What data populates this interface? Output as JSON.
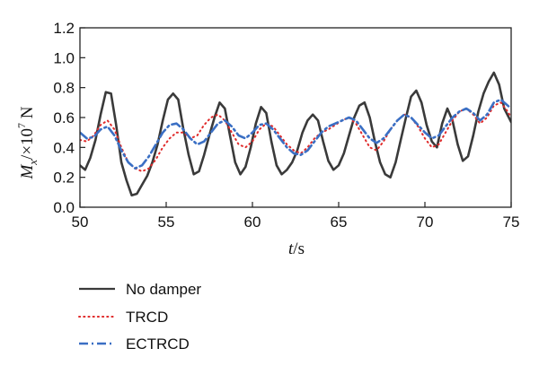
{
  "chart_data": {
    "type": "line",
    "xlabel": "t/s",
    "ylabel": "Mx/×10^7 N",
    "ylabel_parts": {
      "m": "M",
      "sub": "x",
      "mid": "/×10",
      "sup": "7",
      "unit": " N"
    },
    "xlabel_parts": {
      "t": "t",
      "unit": "/s"
    },
    "xlim": [
      50,
      75
    ],
    "ylim": [
      0.0,
      1.2
    ],
    "x_ticks": [
      50,
      55,
      60,
      65,
      70,
      75
    ],
    "y_ticks": [
      0.0,
      0.2,
      0.4,
      0.6,
      0.8,
      1.0,
      1.2
    ],
    "x_tick_labels": [
      "50",
      "55",
      "60",
      "65",
      "70",
      "75"
    ],
    "y_tick_labels": [
      "0.0",
      "0.2",
      "0.4",
      "0.6",
      "0.8",
      "1.0",
      "1.2"
    ],
    "grid": false,
    "legend_position": "below",
    "series": [
      {
        "name": "No damper",
        "color": "#3a3a3a",
        "style": "solid",
        "x": [
          50.0,
          50.3,
          50.6,
          50.9,
          51.2,
          51.5,
          51.8,
          52.1,
          52.4,
          52.7,
          53.0,
          53.3,
          53.6,
          53.9,
          54.2,
          54.5,
          54.8,
          55.1,
          55.4,
          55.7,
          56.0,
          56.3,
          56.6,
          56.9,
          57.2,
          57.5,
          57.8,
          58.1,
          58.4,
          58.7,
          59.0,
          59.3,
          59.6,
          59.9,
          60.2,
          60.5,
          60.8,
          61.1,
          61.4,
          61.7,
          62.0,
          62.3,
          62.6,
          62.9,
          63.2,
          63.5,
          63.8,
          64.1,
          64.4,
          64.7,
          65.0,
          65.3,
          65.6,
          65.9,
          66.2,
          66.5,
          66.8,
          67.1,
          67.4,
          67.7,
          68.0,
          68.3,
          68.6,
          68.9,
          69.2,
          69.5,
          69.8,
          70.1,
          70.4,
          70.7,
          71.0,
          71.3,
          71.6,
          71.9,
          72.2,
          72.5,
          72.8,
          73.1,
          73.4,
          73.7,
          74.0,
          74.3,
          74.6,
          75.0
        ],
        "values": [
          0.28,
          0.25,
          0.33,
          0.45,
          0.62,
          0.77,
          0.76,
          0.55,
          0.3,
          0.18,
          0.08,
          0.09,
          0.15,
          0.21,
          0.3,
          0.42,
          0.58,
          0.72,
          0.76,
          0.72,
          0.52,
          0.35,
          0.22,
          0.24,
          0.35,
          0.48,
          0.6,
          0.7,
          0.66,
          0.48,
          0.3,
          0.22,
          0.27,
          0.4,
          0.56,
          0.67,
          0.63,
          0.44,
          0.28,
          0.22,
          0.25,
          0.3,
          0.38,
          0.5,
          0.58,
          0.62,
          0.58,
          0.44,
          0.31,
          0.25,
          0.28,
          0.36,
          0.48,
          0.6,
          0.68,
          0.7,
          0.6,
          0.44,
          0.3,
          0.22,
          0.2,
          0.3,
          0.45,
          0.6,
          0.74,
          0.78,
          0.7,
          0.55,
          0.44,
          0.4,
          0.56,
          0.66,
          0.58,
          0.42,
          0.31,
          0.34,
          0.48,
          0.64,
          0.76,
          0.84,
          0.9,
          0.82,
          0.66,
          0.57
        ]
      },
      {
        "name": "TRCD",
        "color": "#e02b2b",
        "style": "dotted",
        "x": [
          50.0,
          50.4,
          50.8,
          51.2,
          51.6,
          52.0,
          52.4,
          52.8,
          53.2,
          53.6,
          54.0,
          54.4,
          54.8,
          55.2,
          55.6,
          56.0,
          56.4,
          56.8,
          57.2,
          57.6,
          58.0,
          58.4,
          58.8,
          59.2,
          59.6,
          60.0,
          60.4,
          60.8,
          61.2,
          61.6,
          62.0,
          62.4,
          62.8,
          63.2,
          63.6,
          64.0,
          64.4,
          64.8,
          65.2,
          65.6,
          66.0,
          66.4,
          66.8,
          67.2,
          67.6,
          68.0,
          68.4,
          68.8,
          69.2,
          69.6,
          70.0,
          70.4,
          70.8,
          71.2,
          71.6,
          72.0,
          72.4,
          72.8,
          73.2,
          73.6,
          74.0,
          74.4,
          74.8,
          75.0
        ],
        "values": [
          0.45,
          0.44,
          0.48,
          0.55,
          0.58,
          0.52,
          0.4,
          0.3,
          0.26,
          0.24,
          0.26,
          0.32,
          0.4,
          0.46,
          0.5,
          0.5,
          0.46,
          0.48,
          0.55,
          0.6,
          0.62,
          0.58,
          0.5,
          0.42,
          0.4,
          0.44,
          0.52,
          0.56,
          0.54,
          0.48,
          0.42,
          0.38,
          0.36,
          0.4,
          0.46,
          0.5,
          0.52,
          0.55,
          0.58,
          0.6,
          0.56,
          0.48,
          0.4,
          0.38,
          0.44,
          0.52,
          0.58,
          0.62,
          0.6,
          0.54,
          0.46,
          0.4,
          0.42,
          0.5,
          0.58,
          0.64,
          0.66,
          0.62,
          0.56,
          0.6,
          0.68,
          0.7,
          0.64,
          0.6
        ]
      },
      {
        "name": "ECTRCD",
        "color": "#3a6fc4",
        "style": "dashdot",
        "x": [
          50.0,
          50.4,
          50.8,
          51.2,
          51.6,
          52.0,
          52.4,
          52.8,
          53.2,
          53.6,
          54.0,
          54.4,
          54.8,
          55.2,
          55.6,
          56.0,
          56.4,
          56.8,
          57.2,
          57.6,
          58.0,
          58.4,
          58.8,
          59.2,
          59.6,
          60.0,
          60.4,
          60.8,
          61.2,
          61.6,
          62.0,
          62.4,
          62.8,
          63.2,
          63.6,
          64.0,
          64.4,
          64.8,
          65.2,
          65.6,
          66.0,
          66.4,
          66.8,
          67.2,
          67.6,
          68.0,
          68.4,
          68.8,
          69.2,
          69.6,
          70.0,
          70.4,
          70.8,
          71.2,
          71.6,
          72.0,
          72.4,
          72.8,
          73.2,
          73.6,
          74.0,
          74.4,
          74.8,
          75.0
        ],
        "values": [
          0.5,
          0.46,
          0.47,
          0.52,
          0.54,
          0.48,
          0.38,
          0.3,
          0.26,
          0.28,
          0.34,
          0.42,
          0.5,
          0.55,
          0.56,
          0.52,
          0.46,
          0.42,
          0.44,
          0.5,
          0.56,
          0.58,
          0.54,
          0.48,
          0.46,
          0.5,
          0.55,
          0.56,
          0.52,
          0.46,
          0.4,
          0.36,
          0.35,
          0.38,
          0.44,
          0.5,
          0.54,
          0.56,
          0.58,
          0.6,
          0.58,
          0.52,
          0.46,
          0.43,
          0.46,
          0.52,
          0.58,
          0.62,
          0.6,
          0.55,
          0.5,
          0.46,
          0.48,
          0.54,
          0.6,
          0.64,
          0.66,
          0.63,
          0.58,
          0.62,
          0.7,
          0.72,
          0.68,
          0.66
        ]
      }
    ]
  }
}
